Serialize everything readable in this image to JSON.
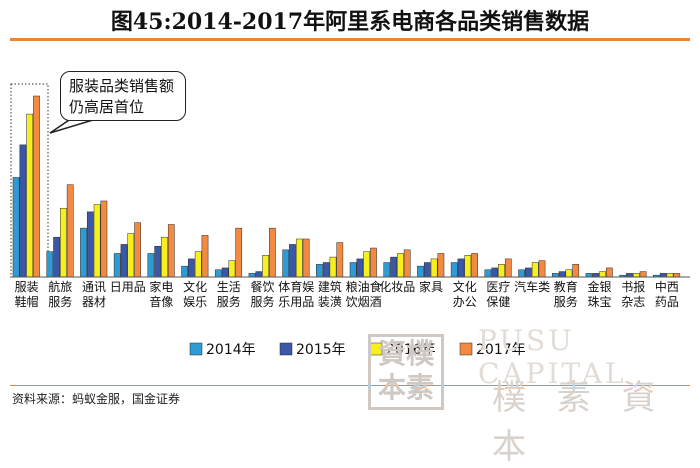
{
  "title": "图45:2014-2017年阿里系电商各品类销售数据",
  "callout_text": [
    "服装品类销售额",
    "仍高居首位"
  ],
  "source": "资料来源：蚂蚁金服，国金证券",
  "watermark": {
    "cn": "樸 素 資 本",
    "en": "PUSU CAPITAL",
    "seal": [
      "資樸",
      "本素"
    ]
  },
  "colors": {
    "2014年": "#2e9bd4",
    "2015年": "#3a57a8",
    "2016年": "#f7ef1e",
    "2017年": "#f28a43",
    "accent": "#e8873a"
  },
  "chart_data": {
    "type": "bar",
    "title": "图45:2014-2017年阿里系电商各品类销售数据",
    "xlabel": "",
    "ylabel": "",
    "grid": false,
    "legend_placement": "bottom",
    "categories": [
      [
        "服装",
        "鞋帽"
      ],
      [
        "航旅",
        "服务"
      ],
      [
        "通讯",
        "器材"
      ],
      [
        "日用品"
      ],
      [
        "家电",
        "音像"
      ],
      [
        "文化",
        "娱乐"
      ],
      [
        "生活",
        "服务"
      ],
      [
        "餐饮",
        "服务"
      ],
      [
        "体育娱",
        "乐用品"
      ],
      [
        "建筑",
        "装潢"
      ],
      [
        "粮油食",
        "饮烟酒"
      ],
      [
        "化妆品"
      ],
      [
        "家具"
      ],
      [
        "文化",
        "办公"
      ],
      [
        "医疗",
        "保健"
      ],
      [
        "汽车类"
      ],
      [
        "教育",
        "服务"
      ],
      [
        "金银",
        "珠宝"
      ],
      [
        "书报",
        "杂志"
      ],
      [
        "中西",
        "药品"
      ]
    ],
    "ylim": [
      0,
      100
    ],
    "series": [
      {
        "name": "2014年",
        "values": [
          55,
          14,
          27,
          13,
          13,
          6,
          4,
          2,
          15,
          7,
          8,
          8,
          6,
          8,
          4,
          4,
          2,
          2,
          1,
          1
        ]
      },
      {
        "name": "2015年",
        "values": [
          73,
          22,
          36,
          18,
          17,
          10,
          5,
          3,
          18,
          8,
          10,
          11,
          8,
          10,
          5,
          5,
          3,
          2,
          2,
          2
        ]
      },
      {
        "name": "2016年",
        "values": [
          90,
          38,
          40,
          24,
          22,
          14,
          9,
          12,
          21,
          11,
          14,
          13,
          10,
          12,
          7,
          8,
          4,
          3,
          2,
          2
        ]
      },
      {
        "name": "2017年",
        "values": [
          100,
          51,
          42,
          30,
          29,
          23,
          27,
          27,
          21,
          19,
          16,
          15,
          13,
          13,
          10,
          9,
          7,
          5,
          3,
          2
        ]
      }
    ]
  }
}
